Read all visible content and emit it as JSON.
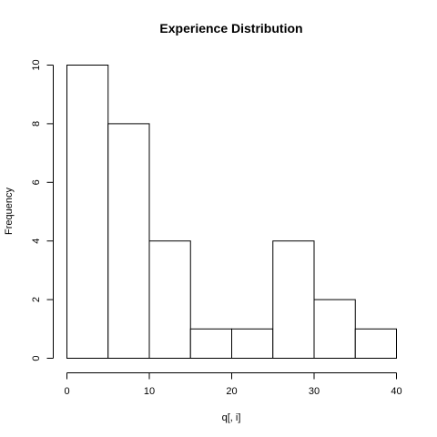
{
  "chart_data": {
    "type": "bar",
    "title": "Experience Distribution",
    "xlabel": "q[, i]",
    "ylabel": "Frequency",
    "bins": [
      {
        "start": 0,
        "end": 5,
        "count": 10
      },
      {
        "start": 5,
        "end": 10,
        "count": 8
      },
      {
        "start": 10,
        "end": 15,
        "count": 4
      },
      {
        "start": 15,
        "end": 20,
        "count": 1
      },
      {
        "start": 20,
        "end": 25,
        "count": 1
      },
      {
        "start": 25,
        "end": 30,
        "count": 4
      },
      {
        "start": 30,
        "end": 35,
        "count": 2
      },
      {
        "start": 35,
        "end": 40,
        "count": 1
      }
    ],
    "xlim": [
      0,
      40
    ],
    "ylim": [
      0,
      10
    ],
    "xticks": [
      0,
      10,
      20,
      30,
      40
    ],
    "yticks": [
      0,
      2,
      4,
      6,
      8,
      10
    ],
    "grid": false,
    "legend": "none",
    "bar_fill": "#ffffff",
    "bar_stroke": "#000000"
  }
}
